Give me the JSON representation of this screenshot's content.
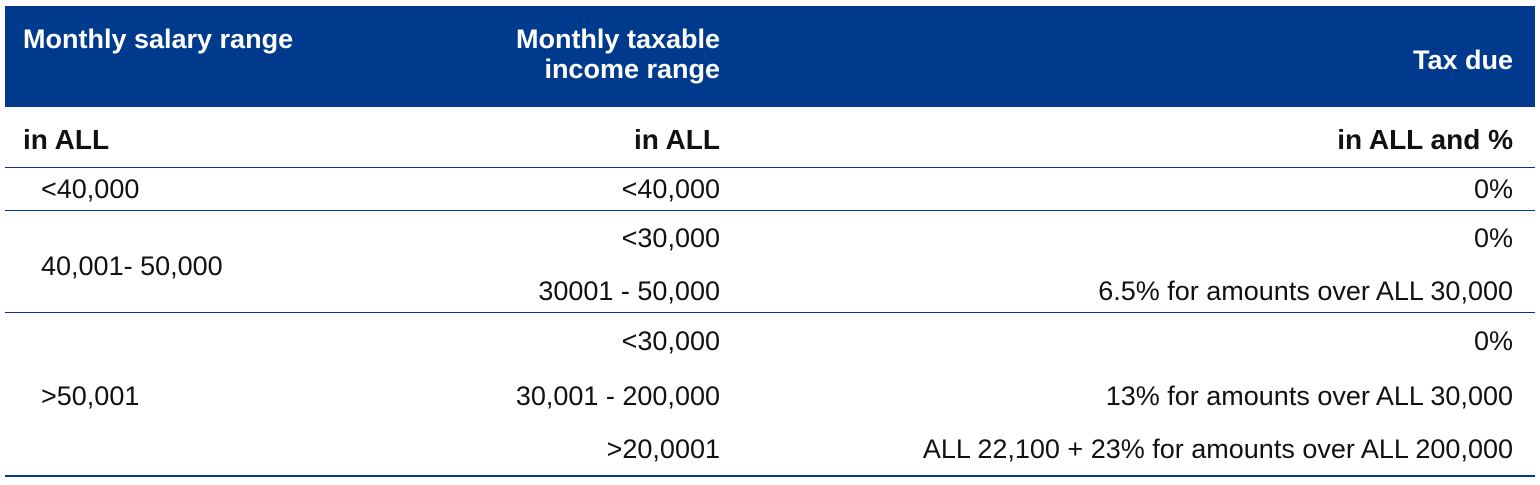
{
  "header": {
    "col1": "Monthly salary range",
    "col2_line1": "Monthly taxable",
    "col2_line2": "income range",
    "col3": "Tax due"
  },
  "units": {
    "col1": "in ALL",
    "col2": "in ALL",
    "col3": "in ALL and %"
  },
  "groups": [
    {
      "salary": "<40,000",
      "rows": [
        {
          "taxable": "<40,000",
          "tax": "0%"
        }
      ]
    },
    {
      "salary": "40,001- 50,000",
      "rows": [
        {
          "taxable": "<30,000",
          "tax": "0%"
        },
        {
          "taxable": "30001 - 50,000",
          "tax": "6.5% for amounts over ALL 30,000"
        }
      ]
    },
    {
      "salary": ">50,001",
      "rows": [
        {
          "taxable": "<30,000",
          "tax": "0%"
        },
        {
          "taxable": "30,001 - 200,000",
          "tax": "13% for amounts over ALL 30,000"
        },
        {
          "taxable": ">20,0001",
          "tax": "ALL 22,100 + 23% for amounts over ALL 200,000"
        }
      ]
    }
  ],
  "colors": {
    "header_bg": "#003a8c",
    "header_text": "#ffffff",
    "divider": "#003a8c"
  }
}
